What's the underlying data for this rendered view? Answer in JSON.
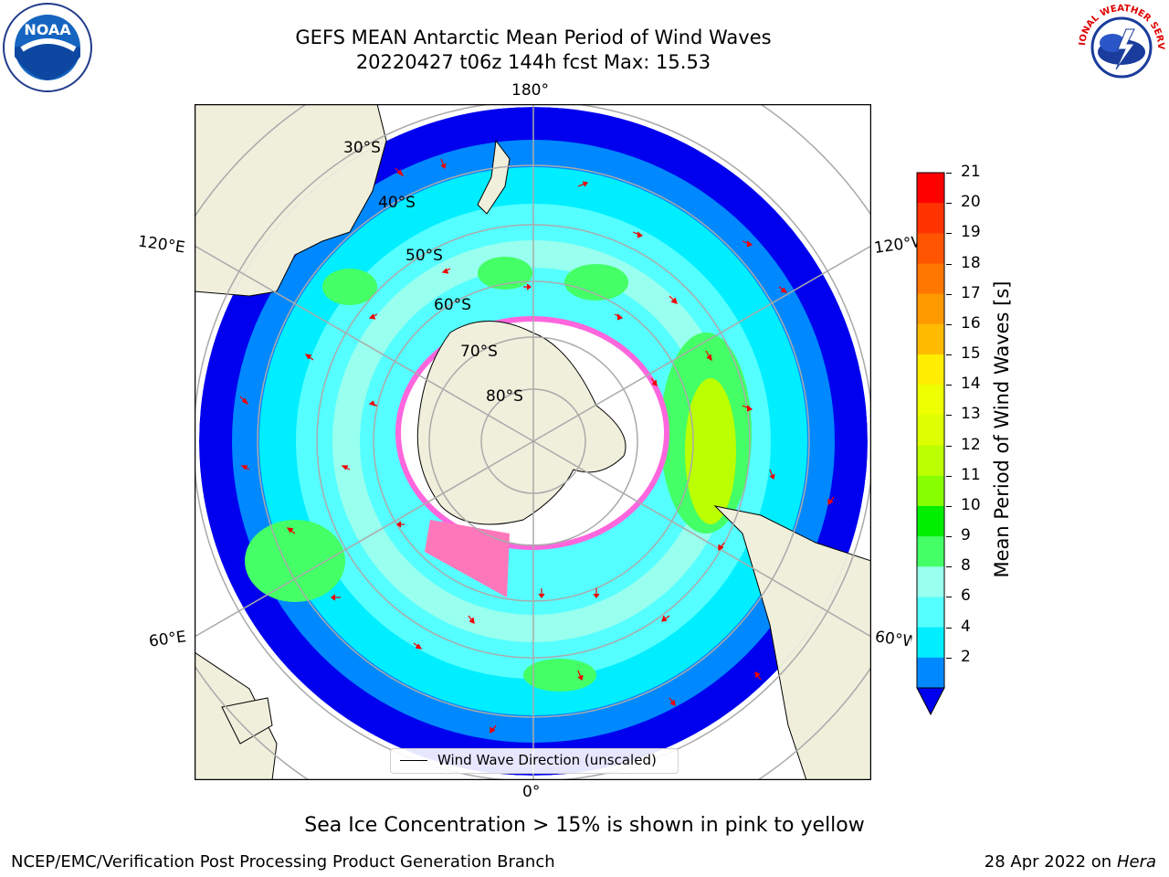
{
  "title": {
    "line1": "GEFS MEAN Antarctic Mean Period of Wind Waves",
    "line2": "20220427 t06z 144h fcst   Max: 15.53"
  },
  "map": {
    "projection": "south-polar-stereographic",
    "lon_labels": {
      "top": "180°",
      "bottom": "0°",
      "left_upper": "120°E",
      "left_lower": "60°E",
      "right_upper": "120°W",
      "right_lower": "60°W"
    },
    "lat_labels": [
      "30°S",
      "40°S",
      "50°S",
      "60°S",
      "70°S",
      "80°S"
    ],
    "legend_label": "Wind Wave Direction (unscaled)"
  },
  "colorbar": {
    "label": "Mean Period of Wind Waves [s]",
    "ticks": [
      "21",
      "20",
      "19",
      "18",
      "17",
      "16",
      "15",
      "14",
      "13",
      "12",
      "11",
      "10",
      "9",
      "8",
      "6",
      "4",
      "2"
    ],
    "colors": [
      "#ff0000",
      "#ff3300",
      "#ff5500",
      "#ff7700",
      "#ff9900",
      "#ffbb00",
      "#ffee00",
      "#eeff00",
      "#ddff00",
      "#bbff00",
      "#88ff00",
      "#00ee00",
      "#44ff66",
      "#99ffee",
      "#55ffff",
      "#00eeff",
      "#0088ff",
      "#0000ee"
    ]
  },
  "logos": {
    "left": "NOAA",
    "right": "NATIONAL WEATHER SERVICE"
  },
  "note": "Sea Ice Concentration > 15% is shown in pink to yellow",
  "footer": {
    "credit": "NCEP/EMC/Verification Post Processing Product Generation Branch",
    "date": "28 Apr 2022 on ",
    "host": "Hera"
  }
}
